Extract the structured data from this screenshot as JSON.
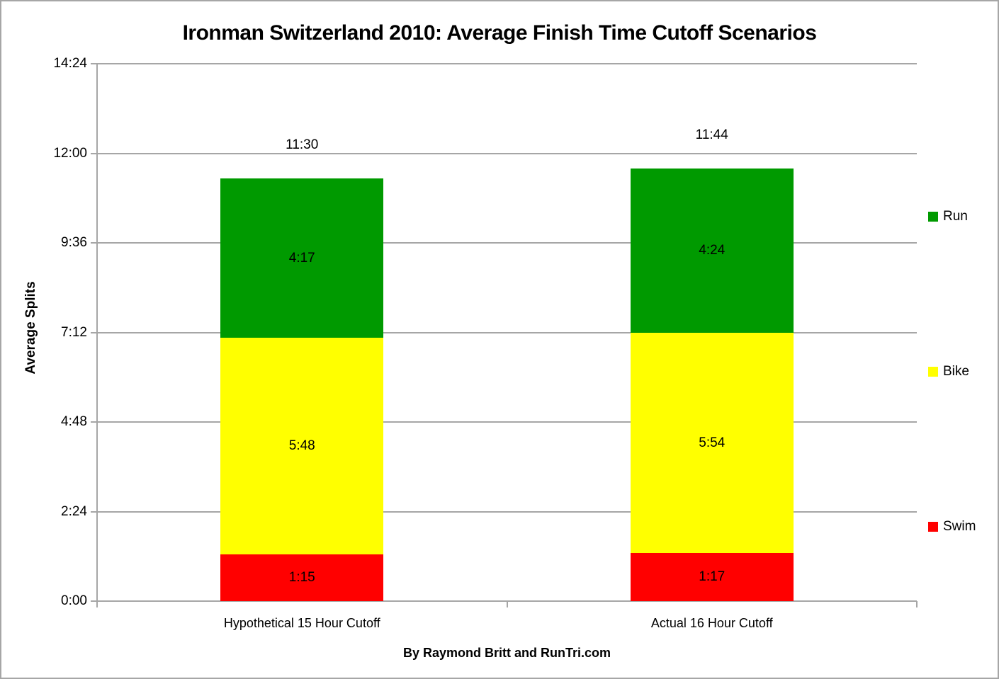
{
  "chart_data": {
    "type": "bar",
    "stacked": true,
    "title": "Ironman Switzerland 2010: Average Finish Time Cutoff Scenarios",
    "ylabel": "Average Splits",
    "xlabel": "",
    "footer": "By Raymond Britt and RunTri.com",
    "categories": [
      "Hypothetical 15 Hour Cutoff",
      "Actual 16 Hour Cutoff"
    ],
    "series": [
      {
        "name": "Swim",
        "color": "#FF0000",
        "labels": [
          "1:15",
          "1:17"
        ],
        "values_minutes": [
          75,
          77
        ]
      },
      {
        "name": "Bike",
        "color": "#FFFF00",
        "labels": [
          "5:48",
          "5:54"
        ],
        "values_minutes": [
          348,
          354
        ]
      },
      {
        "name": "Run",
        "color": "#009A00",
        "labels": [
          "4:17",
          "4:24"
        ],
        "values_minutes": [
          257,
          264
        ]
      }
    ],
    "totals": [
      "11:30",
      "11:44"
    ],
    "y_ticks": [
      "0:00",
      "2:24",
      "4:48",
      "7:12",
      "9:36",
      "12:00",
      "14:24"
    ],
    "ylim_minutes": [
      0,
      864
    ],
    "grid": true,
    "legend": {
      "position": "right",
      "items": [
        {
          "label": "Run",
          "color": "#009A00"
        },
        {
          "label": "Bike",
          "color": "#FFFF00"
        },
        {
          "label": "Swim",
          "color": "#FF0000"
        }
      ]
    },
    "colors": {
      "gridline": "#A6A6A6",
      "axis": "#A6A6A6",
      "text": "#000000",
      "background": "#FFFFFF"
    }
  }
}
